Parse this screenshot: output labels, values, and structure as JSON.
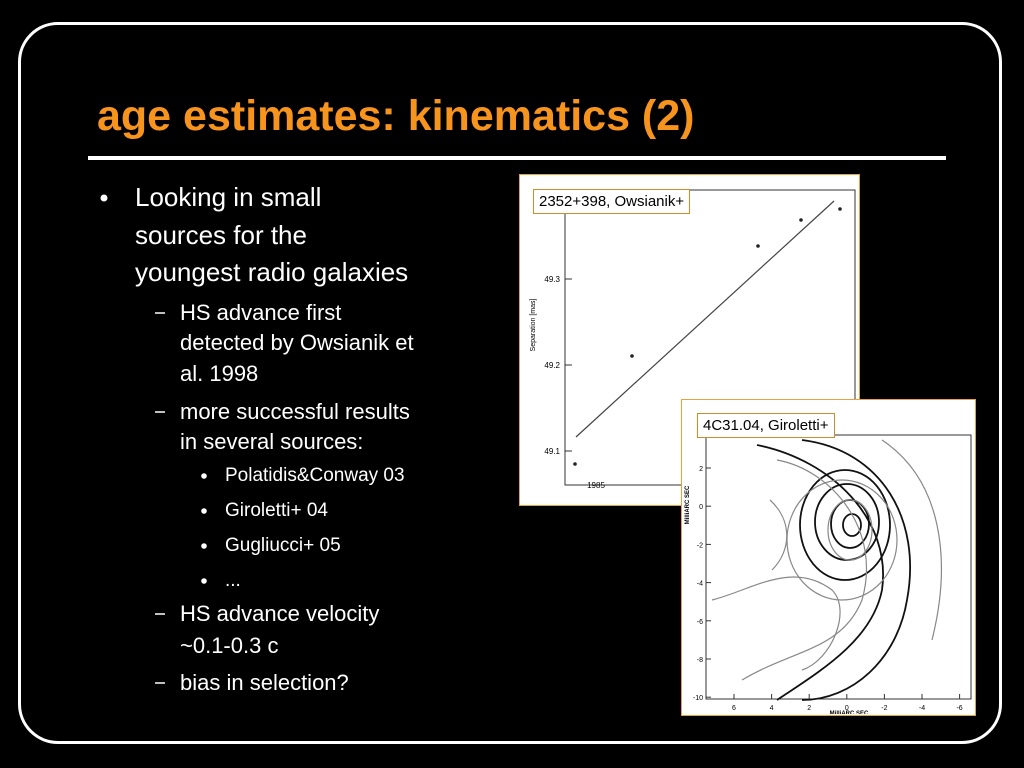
{
  "title": "age estimates: kinematics (2)",
  "bullets": [
    {
      "lines": [
        "Looking in small",
        "sources for the",
        "youngest radio galaxies"
      ],
      "children": [
        {
          "lines": [
            "HS advance first",
            "detected by Owsianik et",
            "al. 1998"
          ]
        },
        {
          "lines": [
            "more successful results",
            "in several sources:"
          ],
          "children": [
            {
              "lines": [
                "Polatidis&Conway 03"
              ]
            },
            {
              "lines": [
                "Giroletti+ 04"
              ]
            },
            {
              "lines": [
                "Gugliucci+ 05"
              ]
            },
            {
              "lines": [
                "..."
              ]
            }
          ]
        },
        {
          "lines": [
            "HS advance velocity",
            "~0.1-0.3 c"
          ]
        },
        {
          "lines": [
            "bias in selection?"
          ]
        }
      ]
    }
  ],
  "figures": [
    {
      "caption": "2352+398, Owsianik+",
      "y_axis_label": "Separation  [mas]",
      "y_ticks": [
        "49.3",
        "49.2",
        "49.1"
      ],
      "x_ticks": [
        "1985"
      ]
    },
    {
      "caption": "4C31.04, Giroletti+",
      "y_axis_label": "MilliARC SEC",
      "x_axis_label": "MilliARC SEC",
      "y_ticks": [
        "2",
        "0",
        "-2",
        "-4",
        "-6",
        "-8",
        "-10"
      ],
      "x_ticks": [
        "6",
        "4",
        "2",
        "0",
        "-2",
        "-4",
        "-6"
      ]
    }
  ]
}
